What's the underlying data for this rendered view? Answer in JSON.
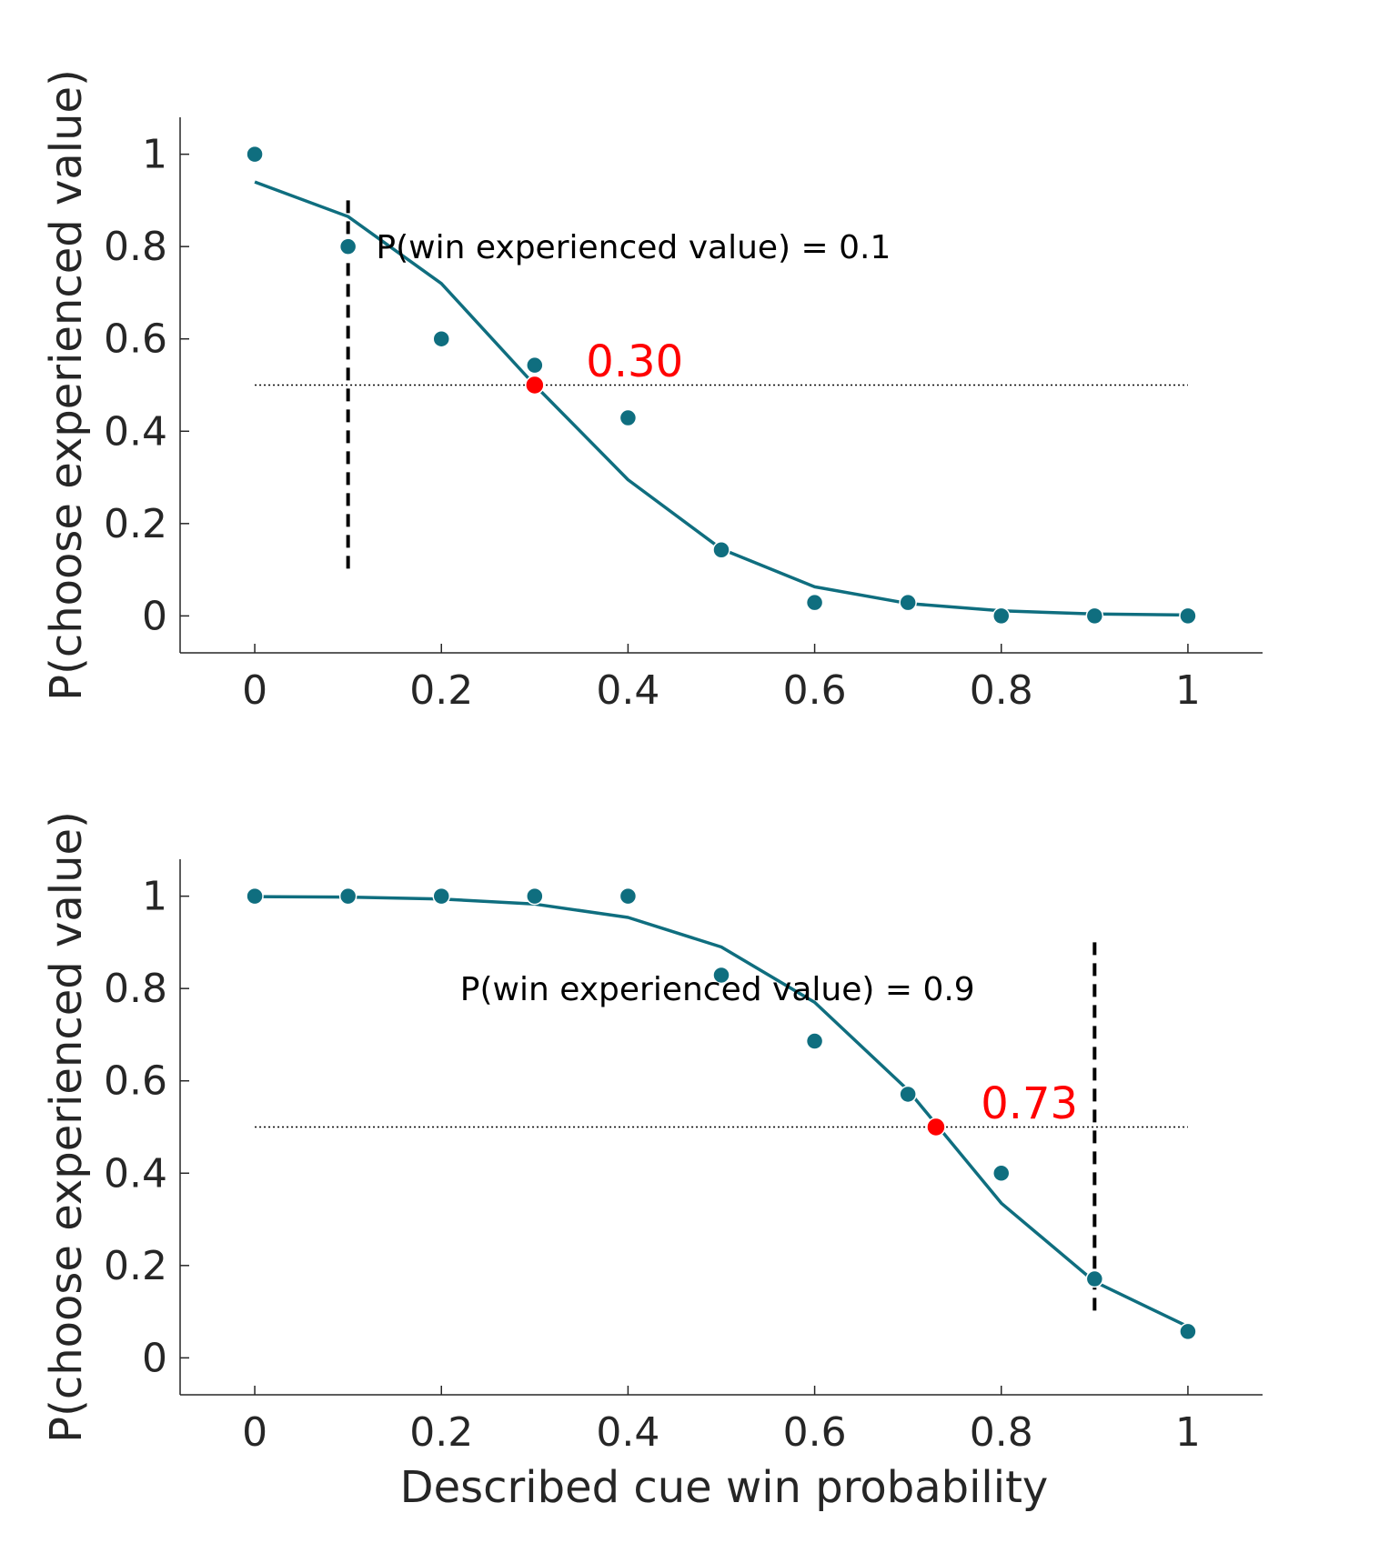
{
  "colors": {
    "series": "#0f6e7f",
    "threshold": "#ff0000",
    "axis": "#262626",
    "reference": "#000000"
  },
  "chart_data": [
    {
      "type": "scatter",
      "xlabel": "",
      "ylabel": "P(choose experienced value)",
      "xlim": [
        -0.08,
        1.08
      ],
      "ylim": [
        -0.08,
        1.08
      ],
      "xticks": [
        0,
        0.2,
        0.4,
        0.6,
        0.8,
        1
      ],
      "xtick_labels": [
        "0",
        "0.2",
        "0.4",
        "0.6",
        "0.8",
        "1"
      ],
      "yticks": [
        0,
        0.2,
        0.4,
        0.6,
        0.8,
        1
      ],
      "ytick_labels": [
        "0",
        "0.2",
        "0.4",
        "0.6",
        "0.8",
        "1"
      ],
      "grid": false,
      "points": {
        "x": [
          0,
          0.1,
          0.2,
          0.3,
          0.4,
          0.5,
          0.6,
          0.7,
          0.8,
          0.9,
          1
        ],
        "y": [
          1.0,
          0.8,
          0.6,
          0.543,
          0.429,
          0.143,
          0.029,
          0.029,
          0.0,
          0.0,
          0.0
        ]
      },
      "fit_line": {
        "x": [
          0,
          0.1,
          0.2,
          0.3,
          0.4,
          0.5,
          0.6,
          0.7,
          0.8,
          0.9,
          1
        ],
        "y": [
          0.94,
          0.865,
          0.72,
          0.5,
          0.295,
          0.145,
          0.063,
          0.027,
          0.011,
          0.004,
          0.002
        ]
      },
      "threshold_point": {
        "x": 0.3,
        "y": 0.5
      },
      "threshold_label": "0.30",
      "reference_vline": {
        "x": 0.1,
        "y_from": 0.1,
        "y_to": 0.9
      },
      "reference_hline": {
        "y": 0.5,
        "x_from": 0,
        "x_to": 1
      },
      "annotation": {
        "text": "P(win experienced value) = 0.1",
        "x": 0.13,
        "y": 0.8
      },
      "threshold_label_pos": {
        "x": 0.355,
        "y": 0.55
      }
    },
    {
      "type": "scatter",
      "xlabel": "Described cue win probability",
      "ylabel": "P(choose experienced value)",
      "xlim": [
        -0.08,
        1.08
      ],
      "ylim": [
        -0.08,
        1.08
      ],
      "xticks": [
        0,
        0.2,
        0.4,
        0.6,
        0.8,
        1
      ],
      "xtick_labels": [
        "0",
        "0.2",
        "0.4",
        "0.6",
        "0.8",
        "1"
      ],
      "yticks": [
        0,
        0.2,
        0.4,
        0.6,
        0.8,
        1
      ],
      "ytick_labels": [
        "0",
        "0.2",
        "0.4",
        "0.6",
        "0.8",
        "1"
      ],
      "grid": false,
      "points": {
        "x": [
          0,
          0.1,
          0.2,
          0.3,
          0.4,
          0.5,
          0.6,
          0.7,
          0.8,
          0.9,
          1
        ],
        "y": [
          1.0,
          1.0,
          1.0,
          1.0,
          1.0,
          0.829,
          0.686,
          0.571,
          0.4,
          0.171,
          0.057
        ]
      },
      "fit_line": {
        "x": [
          0,
          0.1,
          0.2,
          0.3,
          0.4,
          0.5,
          0.6,
          0.7,
          0.8,
          0.9,
          1
        ],
        "y": [
          0.999,
          0.998,
          0.994,
          0.983,
          0.954,
          0.89,
          0.77,
          0.58,
          0.335,
          0.165,
          0.068
        ]
      },
      "threshold_point": {
        "x": 0.73,
        "y": 0.5
      },
      "threshold_label": "0.73",
      "reference_vline": {
        "x": 0.9,
        "y_from": 0.1,
        "y_to": 0.9
      },
      "reference_hline": {
        "y": 0.5,
        "x_from": 0,
        "x_to": 1
      },
      "annotation": {
        "text": "P(win experienced value) = 0.9",
        "x": 0.22,
        "y": 0.8
      },
      "threshold_label_pos": {
        "x": 0.778,
        "y": 0.55
      }
    }
  ]
}
